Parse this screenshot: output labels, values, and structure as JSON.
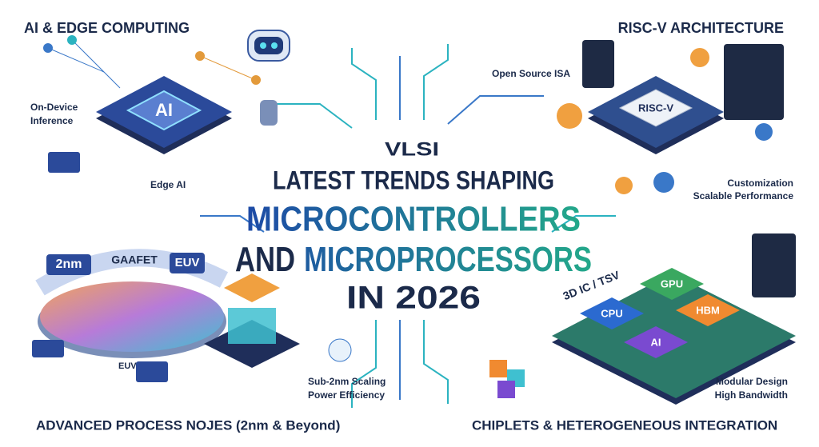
{
  "top_left": {
    "title": "AI & EDGE COMPUTING",
    "chip": "AI",
    "label_1": "On-Device",
    "label_2": "Inference",
    "label_3": "Edge AI"
  },
  "top_right": {
    "title": "RISC-V ARCHITECTURE",
    "chip": "RISC-V",
    "label_1": "Open Source ISA",
    "label_2": "Customization",
    "label_3": "Scalable Performance"
  },
  "center": {
    "kicker": "VLSI",
    "line_1": "LATEST TRENDS SHAPING",
    "line_2": "MICROCONTROLLERS",
    "line_3a": "AND",
    "line_3b": "MICROPROCESSORS",
    "line_4": "IN 2026"
  },
  "bottom_left": {
    "title": "ADVANCED PROCESS NOJES (2nm & Beyond)",
    "tag_1": "2nm",
    "tag_2": "GAAFET",
    "tag_3": "EUV",
    "tag_4": "EUV",
    "label_1": "Sub-2nm Scaling",
    "label_2": "Power Efficiency"
  },
  "bottom_right": {
    "title": "CHIPLETS & HETEROGENEOUS INTEGRATION",
    "tag": "3D IC / TSV",
    "chip_1": "GPU",
    "chip_2": "CPU",
    "chip_3": "HBM",
    "chip_4": "AI",
    "label_1": "Modular Design",
    "label_2": "High Bandwidth"
  }
}
